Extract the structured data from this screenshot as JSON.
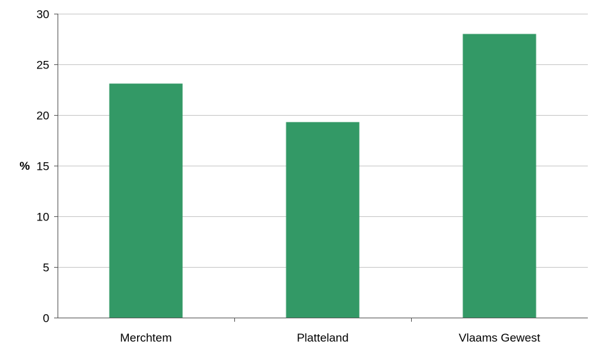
{
  "chart_data": {
    "type": "bar",
    "categories": [
      "Merchtem",
      "Platteland",
      "Vlaams Gewest"
    ],
    "values": [
      23.1,
      19.3,
      28.0
    ],
    "title": "",
    "xlabel": "",
    "ylabel": "%",
    "ylim": [
      0,
      30
    ],
    "yticks": [
      0,
      5,
      10,
      15,
      20,
      25,
      30
    ],
    "grid": true,
    "legend": "none",
    "bar_color": "#339966"
  }
}
